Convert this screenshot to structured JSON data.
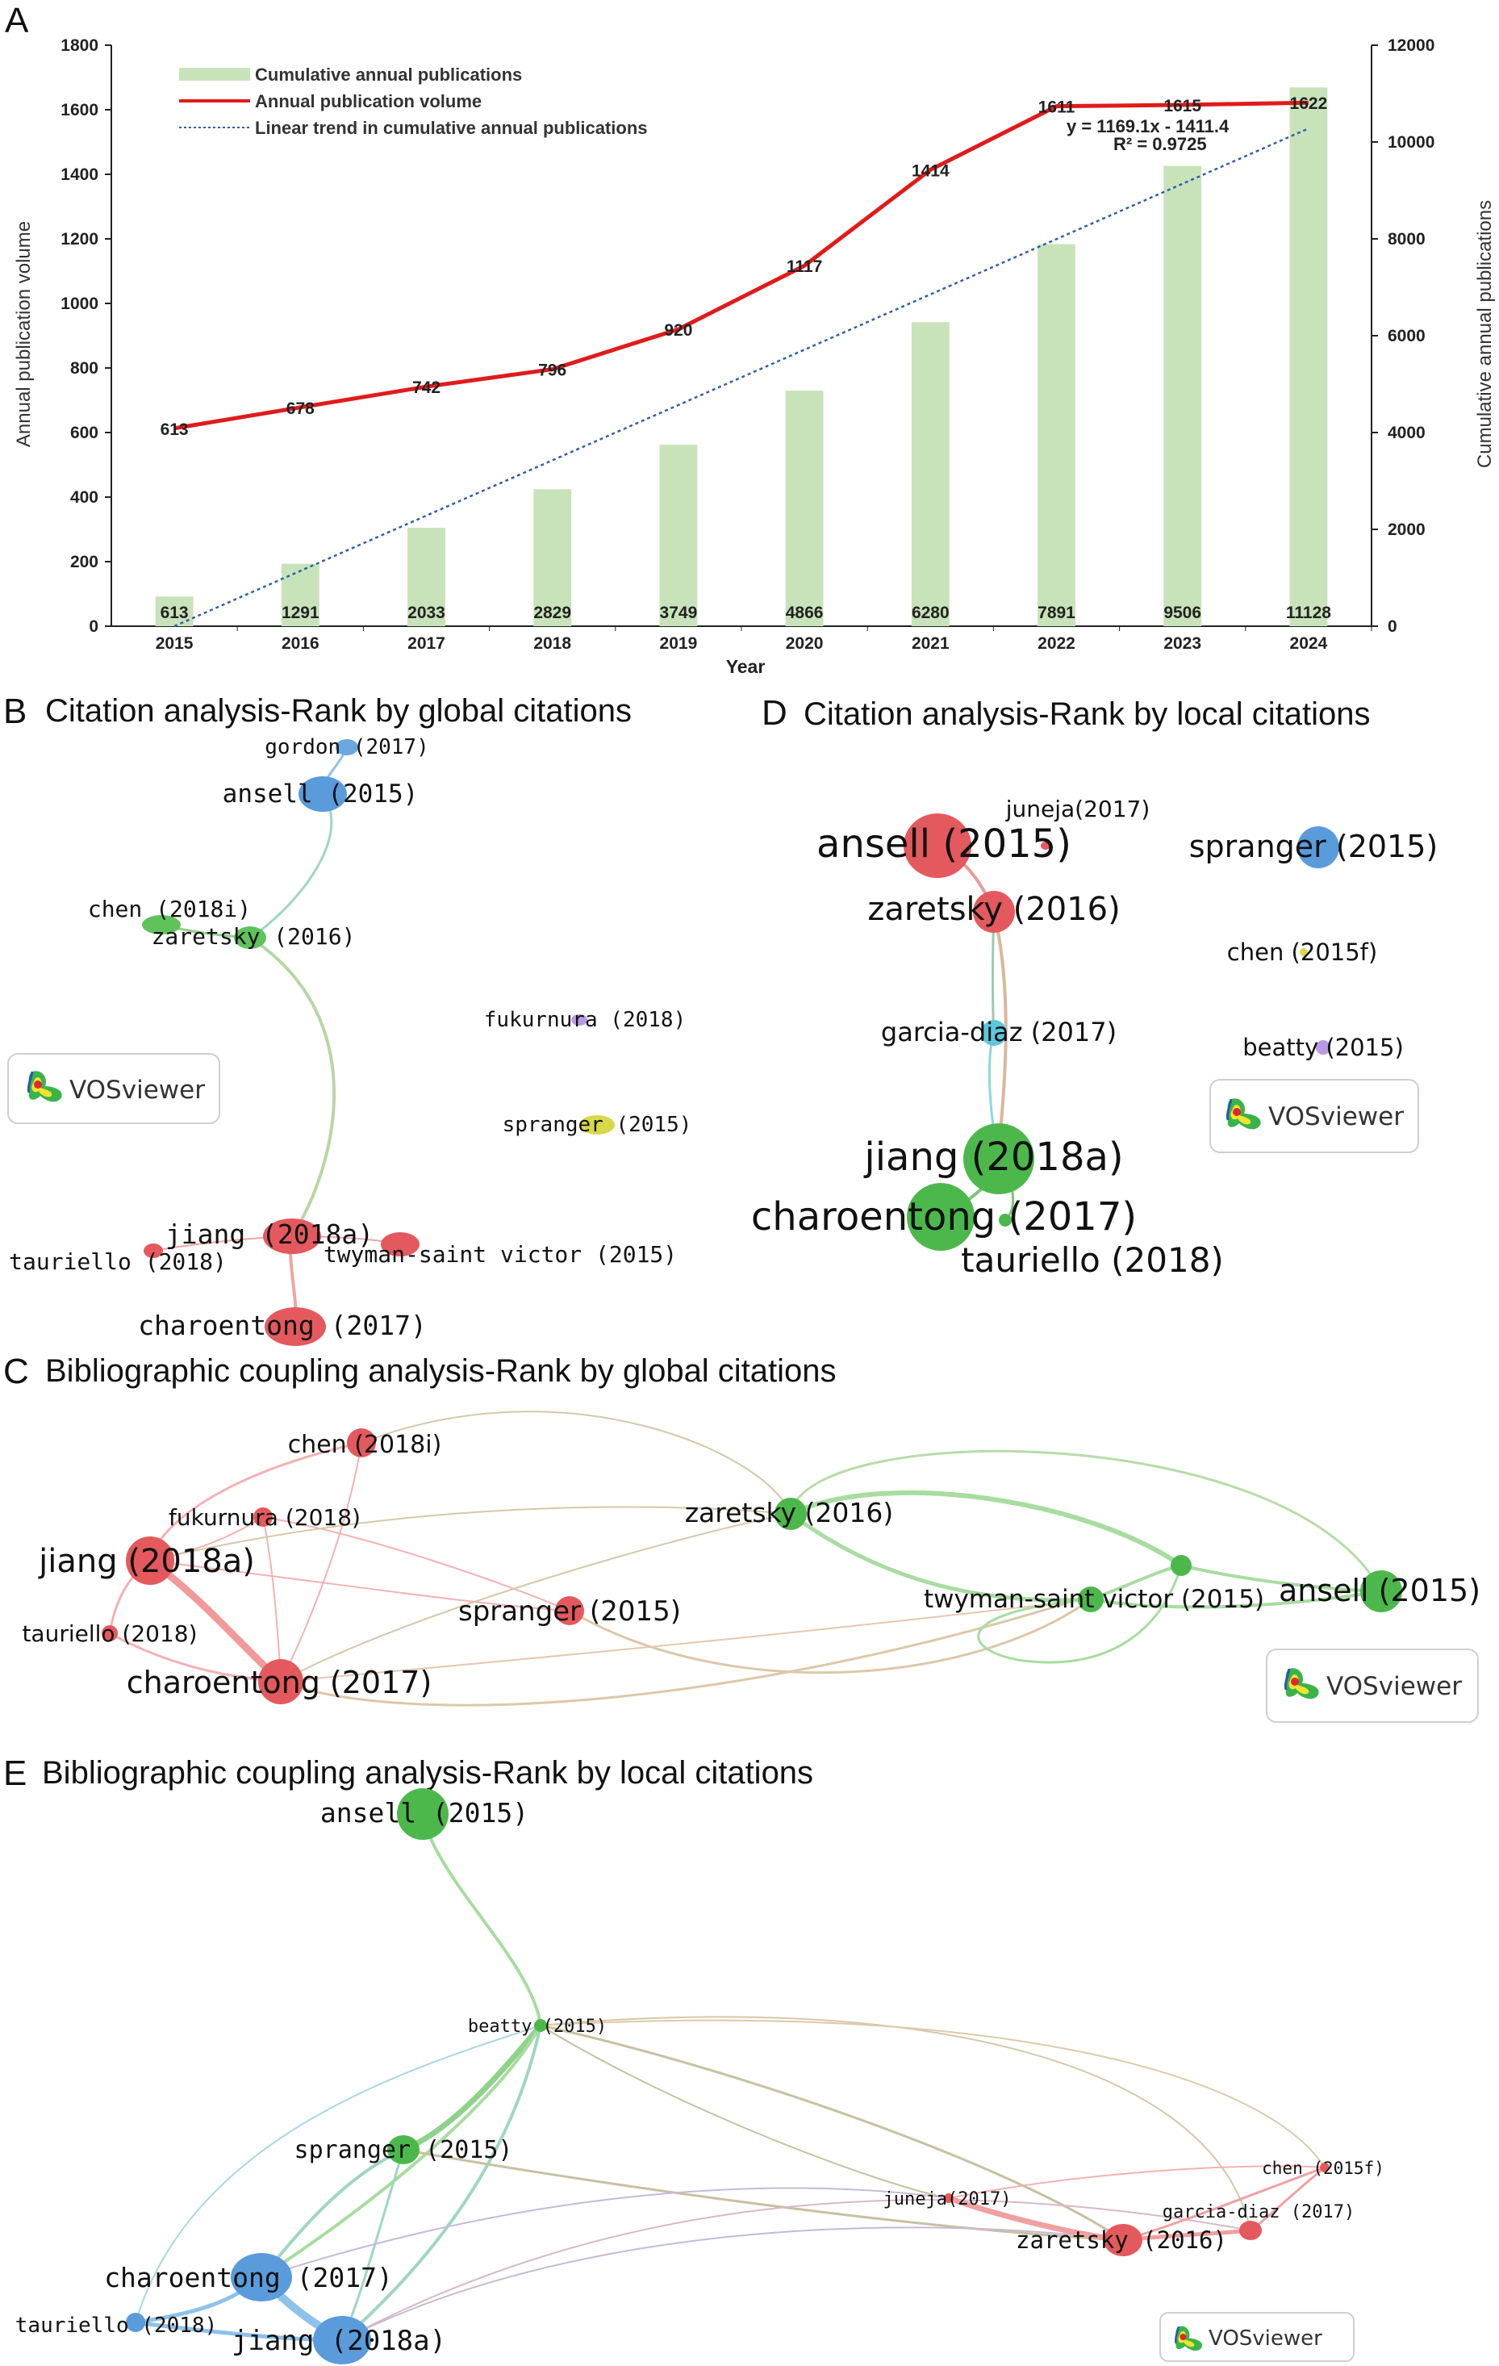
{
  "chart_data": [
    {
      "panel": "A",
      "type": "bar+line",
      "categories": [
        "2015",
        "2016",
        "2017",
        "2018",
        "2019",
        "2020",
        "2021",
        "2022",
        "2023",
        "2024"
      ],
      "series": [
        {
          "name": "Cumulative annual publications",
          "type": "bar",
          "axis": "right",
          "values": [
            613,
            1291,
            2033,
            2829,
            3749,
            4866,
            6280,
            7891,
            9506,
            11128
          ],
          "labels": [
            "613",
            "1291",
            "2033",
            "2829",
            "3749",
            "4866",
            "6280",
            "7891",
            "9506",
            "11128"
          ]
        },
        {
          "name": "Annual publication volume",
          "type": "line",
          "axis": "left",
          "values": [
            613,
            678,
            742,
            796,
            920,
            1117,
            1414,
            1611,
            1615,
            1622
          ],
          "labels": [
            "613",
            "678",
            "742",
            "796",
            "920",
            "1117",
            "1414",
            "1611",
            "1615",
            "1622"
          ]
        },
        {
          "name": "Linear trend in cumulative annual publications",
          "type": "trend",
          "axis": "right",
          "slope": 1169.1,
          "intercept": -1411.4
        }
      ],
      "xlabel": "Year",
      "ylabel_left": "Annual publication volume",
      "ylabel_right": "Cumulative annual publications",
      "ylim_left": [
        0,
        1800
      ],
      "ylim_right": [
        0,
        12000
      ],
      "yticks_left": [
        "0",
        "200",
        "400",
        "600",
        "800",
        "1000",
        "1200",
        "1400",
        "1600",
        "1800"
      ],
      "yticks_right": [
        "0",
        "2000",
        "4000",
        "6000",
        "8000",
        "10000",
        "12000"
      ],
      "annotation": {
        "equation": "y = 1169.1x - 1411.4",
        "r2": "R² = 0.9725"
      },
      "colors": {
        "bar": "#c8e3b9",
        "line": "#e01b1b",
        "trend": "#2f5fad"
      }
    },
    {
      "panel": "B",
      "type": "network",
      "title": "Citation analysis-Rank by global citations",
      "nodes": [
        {
          "label": "gordon (2017)",
          "color": "#6aa7de"
        },
        {
          "label": "ansell (2015)",
          "color": "#5a9bdc"
        },
        {
          "label": "chen (2018i)",
          "color": "#5fc25a"
        },
        {
          "label": "zaretsky (2016)",
          "color": "#5fc25a"
        },
        {
          "label": "fukurnura (2018)",
          "color": "#b79be6"
        },
        {
          "label": "spranger (2015)",
          "color": "#d8d84a"
        },
        {
          "label": "jiang (2018a)",
          "color": "#e4595d"
        },
        {
          "label": "tauriello (2018)",
          "color": "#e4595d"
        },
        {
          "label": "twyman-saint victor (2015)",
          "color": "#e4595d"
        },
        {
          "label": "charoentong (2017)",
          "color": "#e4595d"
        }
      ]
    },
    {
      "panel": "D",
      "type": "network",
      "title": "Citation analysis-Rank by local citations",
      "nodes": [
        {
          "label": "ansell (2015)",
          "color": "#e4595d"
        },
        {
          "label": "juneja(2017)",
          "color": "#e4595d"
        },
        {
          "label": "zaretsky (2016)",
          "color": "#e4595d"
        },
        {
          "label": "spranger (2015)",
          "color": "#5a9bdc"
        },
        {
          "label": "chen (2015f)",
          "color": "#d8d84a"
        },
        {
          "label": "garcia-diaz (2017)",
          "color": "#5cc6dc"
        },
        {
          "label": "beatty (2015)",
          "color": "#b79be6"
        },
        {
          "label": "jiang (2018a)",
          "color": "#4cb84c"
        },
        {
          "label": "charoentong (2017)",
          "color": "#4cb84c"
        },
        {
          "label": "tauriello (2018)",
          "color": "#4cb84c"
        }
      ]
    },
    {
      "panel": "C",
      "type": "network",
      "title": "Bibliographic coupling analysis-Rank by global citations",
      "nodes": [
        {
          "label": "chen (2018i)",
          "color": "#e4595d"
        },
        {
          "label": "fukurnura (2018)",
          "color": "#e4595d"
        },
        {
          "label": "jiang (2018a)",
          "color": "#e4595d"
        },
        {
          "label": "tauriello (2018)",
          "color": "#e4595d"
        },
        {
          "label": "charoentong (2017)",
          "color": "#e4595d"
        },
        {
          "label": "spranger (2015)",
          "color": "#e4595d"
        },
        {
          "label": "zaretsky (2016)",
          "color": "#4cb84c"
        },
        {
          "label": "twyman-saint victor (2015)",
          "color": "#4cb84c"
        },
        {
          "label": "",
          "color": "#4cb84c"
        },
        {
          "label": "ansell (2015)",
          "color": "#4cb84c"
        }
      ]
    },
    {
      "panel": "E",
      "type": "network",
      "title": "Bibliographic coupling analysis-Rank by local citations",
      "nodes": [
        {
          "label": "ansell (2015)",
          "color": "#4cb84c"
        },
        {
          "label": "beatty (2015)",
          "color": "#4cb84c"
        },
        {
          "label": "spranger (2015)",
          "color": "#4cb84c"
        },
        {
          "label": "charoentong (2017)",
          "color": "#5a9bdc"
        },
        {
          "label": "tauriello (2018)",
          "color": "#5a9bdc"
        },
        {
          "label": "jiang (2018a)",
          "color": "#5a9bdc"
        },
        {
          "label": "chen (2015f)",
          "color": "#e4595d"
        },
        {
          "label": "juneja(2017)",
          "color": "#e4595d"
        },
        {
          "label": "garcia-diaz (2017)",
          "color": "#e4595d"
        },
        {
          "label": "zaretsky (2016)",
          "color": "#e4595d"
        }
      ]
    }
  ],
  "panels": {
    "A": "A",
    "B": "B",
    "C": "C",
    "D": "D",
    "E": "E"
  },
  "vosviewer_label": "VOSviewer"
}
